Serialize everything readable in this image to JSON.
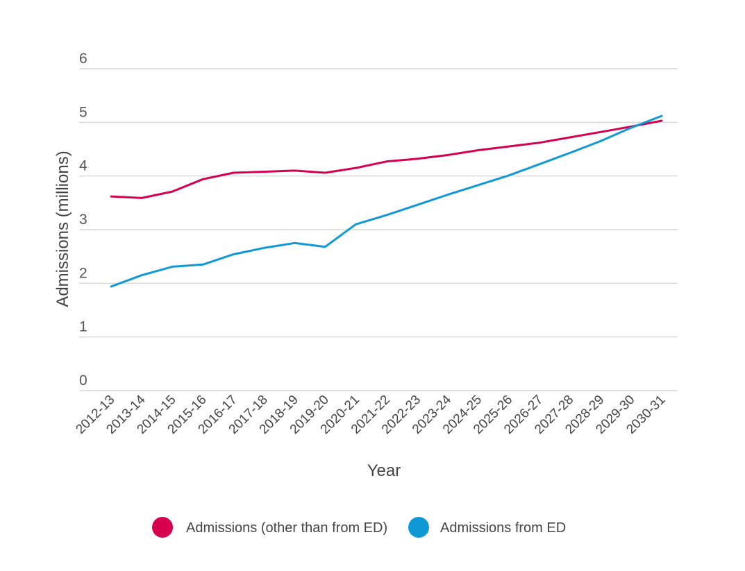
{
  "chart_data": {
    "type": "line",
    "title": "",
    "xlabel": "Year",
    "ylabel": "Admissions (millions)",
    "ylim": [
      0,
      6
    ],
    "yticks": [
      0,
      1,
      2,
      3,
      4,
      5,
      6
    ],
    "grid": "horizontal",
    "legend_position": "bottom",
    "categories": [
      "2012-13",
      "2013-14",
      "2014-15",
      "2015-16",
      "2016-17",
      "2017-18",
      "2018-19",
      "2019-20",
      "2020-21",
      "2021-22",
      "2022-23",
      "2023-24",
      "2024-25",
      "2025-26",
      "2026-27",
      "2027-28",
      "2028-29",
      "2029-30",
      "2030-31"
    ],
    "series": [
      {
        "name": "Admissions (other than from ED)",
        "color": "#d7004f",
        "values": [
          3.62,
          3.59,
          3.71,
          3.94,
          4.06,
          4.08,
          4.1,
          4.06,
          4.15,
          4.27,
          4.32,
          4.39,
          4.48,
          4.55,
          4.62,
          4.72,
          4.82,
          4.92,
          5.03
        ]
      },
      {
        "name": "Admissions from ED",
        "color": "#0e99d6",
        "values": [
          1.94,
          2.15,
          2.31,
          2.35,
          2.54,
          2.66,
          2.75,
          2.68,
          3.1,
          3.27,
          3.46,
          3.65,
          3.83,
          4.01,
          4.22,
          4.43,
          4.65,
          4.9,
          5.12
        ]
      }
    ]
  }
}
